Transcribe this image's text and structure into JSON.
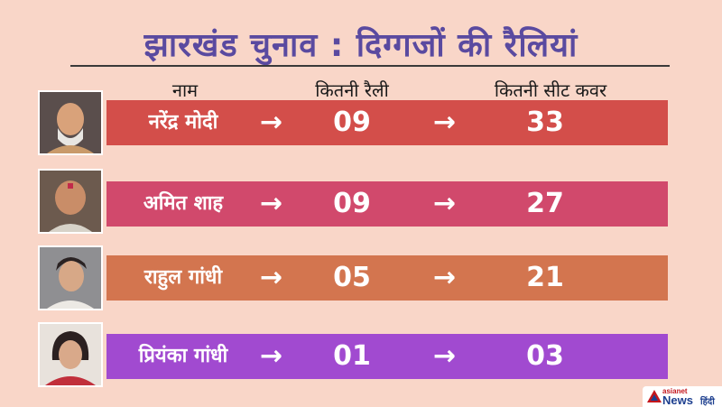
{
  "title": "झारखंड चुनाव : दिग्गजों की रैलियां",
  "headers": {
    "name": "नाम",
    "rallies": "कितनी रैली",
    "seats": "कितनी सीट कवर"
  },
  "arrow": "→",
  "rows": [
    {
      "name": "नरेंद्र मोदी",
      "rallies": "09",
      "seats": "33",
      "color": "#d34e4a"
    },
    {
      "name": "अमित शाह",
      "rallies": "09",
      "seats": "27",
      "color": "#d1496c"
    },
    {
      "name": "राहुल गांधी",
      "rallies": "05",
      "seats": "21",
      "color": "#d3754f"
    },
    {
      "name": "प्रियंका गांधी",
      "rallies": "01",
      "seats": "03",
      "color": "#a14ad0"
    }
  ],
  "logo": {
    "line1": "asianet",
    "line2": "News",
    "line3": "हिंदी"
  }
}
